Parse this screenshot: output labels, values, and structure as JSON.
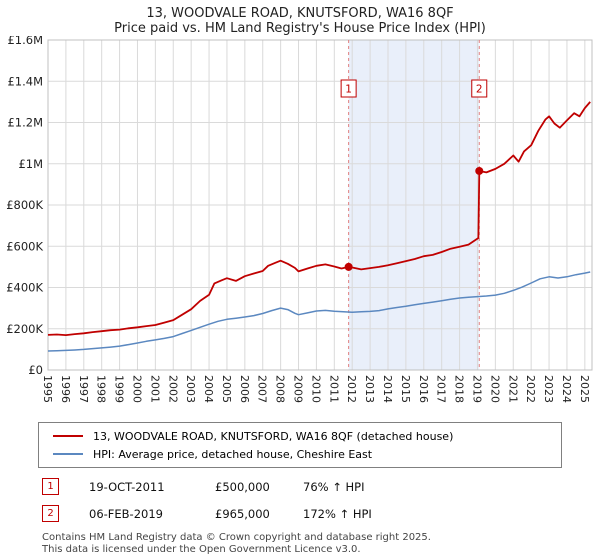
{
  "title": "13, WOODVALE ROAD, KNUTSFORD, WA16 8QF",
  "subtitle": "Price paid vs. HM Land Registry's House Price Index (HPI)",
  "legend": [
    {
      "label": "13, WOODVALE ROAD, KNUTSFORD, WA16 8QF (detached house)",
      "color": "#c00000"
    },
    {
      "label": "HPI: Average price, detached house, Cheshire East",
      "color": "#5b88c0"
    }
  ],
  "sales": [
    {
      "num": "1",
      "date": "19-OCT-2011",
      "price": "£500,000",
      "hpi_change": "76% ↑ HPI",
      "year": 2011.8,
      "value_k": 500
    },
    {
      "num": "2",
      "date": "06-FEB-2019",
      "price": "£965,000",
      "hpi_change": "172% ↑ HPI",
      "year": 2019.1,
      "value_k": 965
    }
  ],
  "footer": {
    "line1": "Contains HM Land Registry data © Crown copyright and database right 2025.",
    "line2": "This data is licensed under the Open Government Licence v3.0."
  },
  "colors": {
    "marker": "#c00000",
    "sale_line": "#e07f7f",
    "grid": "#dadada",
    "border": "#c0c0c0",
    "band": "#e9effa",
    "text": "#222222"
  },
  "chart_data": {
    "type": "line",
    "title": "13, WOODVALE ROAD, KNUTSFORD, WA16 8QF — Price paid vs. HPI",
    "unit": "GBP thousands",
    "x_range": [
      1995,
      2025.4
    ],
    "y_range_k": [
      0,
      1600
    ],
    "grid": true,
    "legend_position": "bottom",
    "band": {
      "from_year": 2011.8,
      "to_year": 2019.1,
      "color": "#e9effa"
    },
    "y_ticks": [
      {
        "label": "£0",
        "value_k": 0
      },
      {
        "label": "£200K",
        "value_k": 200
      },
      {
        "label": "£400K",
        "value_k": 400
      },
      {
        "label": "£600K",
        "value_k": 600
      },
      {
        "label": "£800K",
        "value_k": 800
      },
      {
        "label": "£1M",
        "value_k": 1000
      },
      {
        "label": "£1.2M",
        "value_k": 1200
      },
      {
        "label": "£1.4M",
        "value_k": 1400
      },
      {
        "label": "£1.6M",
        "value_k": 1600
      }
    ],
    "x_ticks": [
      1995,
      1996,
      1997,
      1998,
      1999,
      2000,
      2001,
      2002,
      2003,
      2004,
      2005,
      2006,
      2007,
      2008,
      2009,
      2010,
      2011,
      2012,
      2013,
      2014,
      2015,
      2016,
      2017,
      2018,
      2019,
      2020,
      2021,
      2022,
      2023,
      2024,
      2025
    ],
    "series": [
      {
        "name": "13, WOODVALE ROAD, KNUTSFORD, WA16 8QF (detached house)",
        "color": "#c00000",
        "points": [
          [
            1995,
            170
          ],
          [
            1995.5,
            172
          ],
          [
            1996,
            169
          ],
          [
            1996.5,
            174
          ],
          [
            1997,
            178
          ],
          [
            1997.5,
            184
          ],
          [
            1998,
            188
          ],
          [
            1998.5,
            193
          ],
          [
            1999,
            196
          ],
          [
            1999.5,
            202
          ],
          [
            2000,
            207
          ],
          [
            2000.5,
            213
          ],
          [
            2001,
            218
          ],
          [
            2001.5,
            230
          ],
          [
            2002,
            242
          ],
          [
            2002.5,
            268
          ],
          [
            2003,
            295
          ],
          [
            2003.5,
            335
          ],
          [
            2004,
            365
          ],
          [
            2004.3,
            420
          ],
          [
            2004.7,
            435
          ],
          [
            2005,
            445
          ],
          [
            2005.5,
            432
          ],
          [
            2006,
            455
          ],
          [
            2006.5,
            468
          ],
          [
            2007,
            480
          ],
          [
            2007.3,
            505
          ],
          [
            2007.7,
            520
          ],
          [
            2008,
            530
          ],
          [
            2008.4,
            515
          ],
          [
            2008.8,
            495
          ],
          [
            2009,
            478
          ],
          [
            2009.5,
            492
          ],
          [
            2010,
            505
          ],
          [
            2010.5,
            512
          ],
          [
            2011,
            502
          ],
          [
            2011.4,
            492
          ],
          [
            2011.8,
            500
          ],
          [
            2012,
            497
          ],
          [
            2012.5,
            488
          ],
          [
            2013,
            494
          ],
          [
            2013.5,
            500
          ],
          [
            2014,
            508
          ],
          [
            2014.5,
            518
          ],
          [
            2015,
            528
          ],
          [
            2015.5,
            538
          ],
          [
            2016,
            552
          ],
          [
            2016.5,
            558
          ],
          [
            2017,
            572
          ],
          [
            2017.5,
            588
          ],
          [
            2018,
            598
          ],
          [
            2018.5,
            608
          ],
          [
            2019.05,
            640
          ],
          [
            2019.1,
            965
          ],
          [
            2019.5,
            958
          ],
          [
            2020,
            975
          ],
          [
            2020.5,
            1000
          ],
          [
            2021,
            1040
          ],
          [
            2021.3,
            1010
          ],
          [
            2021.6,
            1060
          ],
          [
            2022,
            1090
          ],
          [
            2022.4,
            1160
          ],
          [
            2022.8,
            1215
          ],
          [
            2023,
            1230
          ],
          [
            2023.3,
            1195
          ],
          [
            2023.6,
            1175
          ],
          [
            2024,
            1210
          ],
          [
            2024.4,
            1245
          ],
          [
            2024.7,
            1230
          ],
          [
            2025,
            1270
          ],
          [
            2025.3,
            1300
          ]
        ]
      },
      {
        "name": "HPI: Average price, detached house, Cheshire East",
        "color": "#5b88c0",
        "points": [
          [
            1995,
            92
          ],
          [
            1995.5,
            93
          ],
          [
            1996,
            95
          ],
          [
            1996.5,
            97
          ],
          [
            1997,
            100
          ],
          [
            1997.5,
            104
          ],
          [
            1998,
            107
          ],
          [
            1998.5,
            111
          ],
          [
            1999,
            116
          ],
          [
            1999.5,
            123
          ],
          [
            2000,
            131
          ],
          [
            2000.5,
            139
          ],
          [
            2001,
            146
          ],
          [
            2001.5,
            153
          ],
          [
            2002,
            162
          ],
          [
            2002.5,
            177
          ],
          [
            2003,
            192
          ],
          [
            2003.5,
            207
          ],
          [
            2004,
            222
          ],
          [
            2004.5,
            236
          ],
          [
            2005,
            246
          ],
          [
            2005.5,
            251
          ],
          [
            2006,
            257
          ],
          [
            2006.5,
            264
          ],
          [
            2007,
            274
          ],
          [
            2007.5,
            288
          ],
          [
            2008,
            300
          ],
          [
            2008.4,
            293
          ],
          [
            2008.8,
            275
          ],
          [
            2009,
            268
          ],
          [
            2009.5,
            277
          ],
          [
            2010,
            286
          ],
          [
            2010.5,
            289
          ],
          [
            2011,
            285
          ],
          [
            2011.5,
            282
          ],
          [
            2012,
            280
          ],
          [
            2012.5,
            282
          ],
          [
            2013,
            284
          ],
          [
            2013.5,
            288
          ],
          [
            2014,
            296
          ],
          [
            2014.5,
            303
          ],
          [
            2015,
            309
          ],
          [
            2015.5,
            316
          ],
          [
            2016,
            323
          ],
          [
            2016.5,
            329
          ],
          [
            2017,
            336
          ],
          [
            2017.5,
            343
          ],
          [
            2018,
            349
          ],
          [
            2018.5,
            353
          ],
          [
            2019,
            356
          ],
          [
            2019.5,
            359
          ],
          [
            2020,
            363
          ],
          [
            2020.5,
            372
          ],
          [
            2021,
            386
          ],
          [
            2021.5,
            402
          ],
          [
            2022,
            422
          ],
          [
            2022.5,
            442
          ],
          [
            2023,
            452
          ],
          [
            2023.5,
            446
          ],
          [
            2024,
            452
          ],
          [
            2024.5,
            462
          ],
          [
            2025,
            470
          ],
          [
            2025.3,
            475
          ]
        ]
      }
    ]
  }
}
